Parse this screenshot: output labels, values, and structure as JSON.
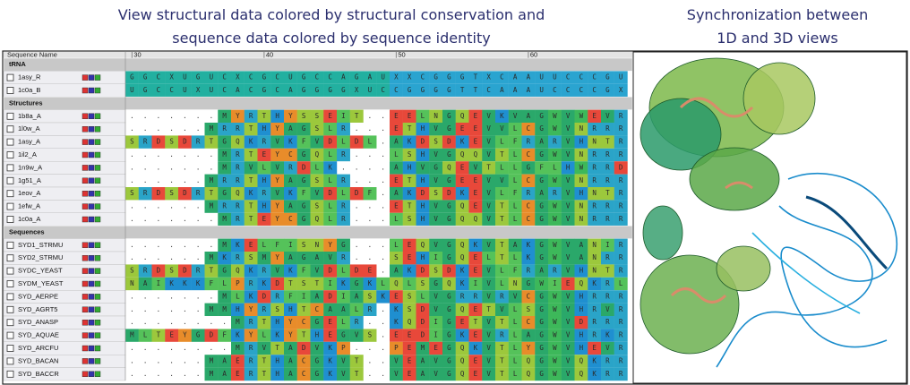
{
  "captions": {
    "left": [
      "View structural data colored by structural conservation and",
      "sequence data colored by sequence identity"
    ],
    "right": [
      "Synchronization between",
      "1D and 3D views"
    ]
  },
  "alignment": {
    "column_header": "Sequence Name",
    "ruler": [
      30,
      40,
      50,
      60
    ],
    "groups": [
      {
        "title": "tRNA",
        "rows": [
          {
            "name": "1asy_R",
            "sequence": "GGCXUGUCXCGCUGCCAGAUXXCGGGTXCAAUUCCCGU"
          },
          {
            "name": "1c0a_B",
            "sequence": "UGCCUXUCACGCAGGGGXUCCGGGGTTCAAAUCCCCGX"
          }
        ]
      },
      {
        "title": "Structures",
        "rows": [
          {
            "name": "1b8a_A",
            "sequence": ".......MYRTHYSSEIT..EELNGQEVKVAGWVWEVR"
          },
          {
            "name": "1l0w_A",
            "sequence": "......MRRTHYAGSLR...ETHVGEEVVLCGWVNRRR"
          },
          {
            "name": "1asy_A",
            "sequence": "SRDSDRTGQKRVKFVDLDL.AKDSDKEVLFRARVHNTR"
          },
          {
            "name": "1il2_A",
            "sequence": ".......MRTEYCGQLR...LSHVGQQVTLCGWVNRRR"
          },
          {
            "name": "1n9w_A",
            "sequence": ".......MRVLVRDLK....AHVGQEVTLLGFLHWRRD"
          },
          {
            "name": "1g51_A",
            "sequence": "......MRRTHYAGSLR...ETHVGEEVVLCGWVNRRR"
          },
          {
            "name": "1eov_A",
            "sequence": "SRDSDRTGQKRVKFVDLDF.AKDSDKEVLFRARVHNTR"
          },
          {
            "name": "1efw_A",
            "sequence": "......MRRTHYAGSLR...ETHVGQEVTLCGWVNRRR"
          },
          {
            "name": "1c0a_A",
            "sequence": ".......MRTEYCGQLR...LSHVGQQVTLCGWVNRRR"
          }
        ]
      },
      {
        "title": "Sequences",
        "rows": [
          {
            "name": "SYD1_STRMU",
            "sequence": ".......MKELFISNYG...LEQVGQKVTAKGWVANIR"
          },
          {
            "name": "SYD2_STRMU",
            "sequence": "......MKRSMYAGAVR...SEHIGQELTLKGWVANRR"
          },
          {
            "name": "SYDC_YEAST",
            "sequence": "SRDSDRTGQKRVKFVDLDE.AKDSDKEVLFRARVHNTR"
          },
          {
            "name": "SYDM_YEAST",
            "sequence": "NAIKKKFLPRKDTSTIKGKLQLSGQKIVLNGWIEQKRL"
          },
          {
            "name": "SYD_AERPE",
            "sequence": ".......MLKDRFIADIASKESLVGRRVRVCGWVHRRR"
          },
          {
            "name": "SYD_AGRT5",
            "sequence": "......MMHYRSHTCAALR.KSDVGQETVLSGWVHRVR"
          },
          {
            "name": "SYD_ANASP",
            "sequence": "........MRTHYCGELR..KQDIGETVTLCGWVDRRR"
          },
          {
            "name": "SYD_AQUAE",
            "sequence": "MLTEYGDFKYLKYTHEGVS.EEDIGKEVRLAGWVHRKR"
          },
          {
            "name": "SYD_ARCFU",
            "sequence": "........MRVTADVKP...PEMEGQKVTLYGWVHEVR"
          },
          {
            "name": "SYD_BACAN",
            "sequence": "......MAERTHACGKVT..VEAVGQEVTLQGWVQKRR"
          },
          {
            "name": "SYD_BACCR",
            "sequence": "......MAERTHACGKVT..VEAVGQEVTLQGWVQKRR"
          }
        ]
      }
    ]
  }
}
